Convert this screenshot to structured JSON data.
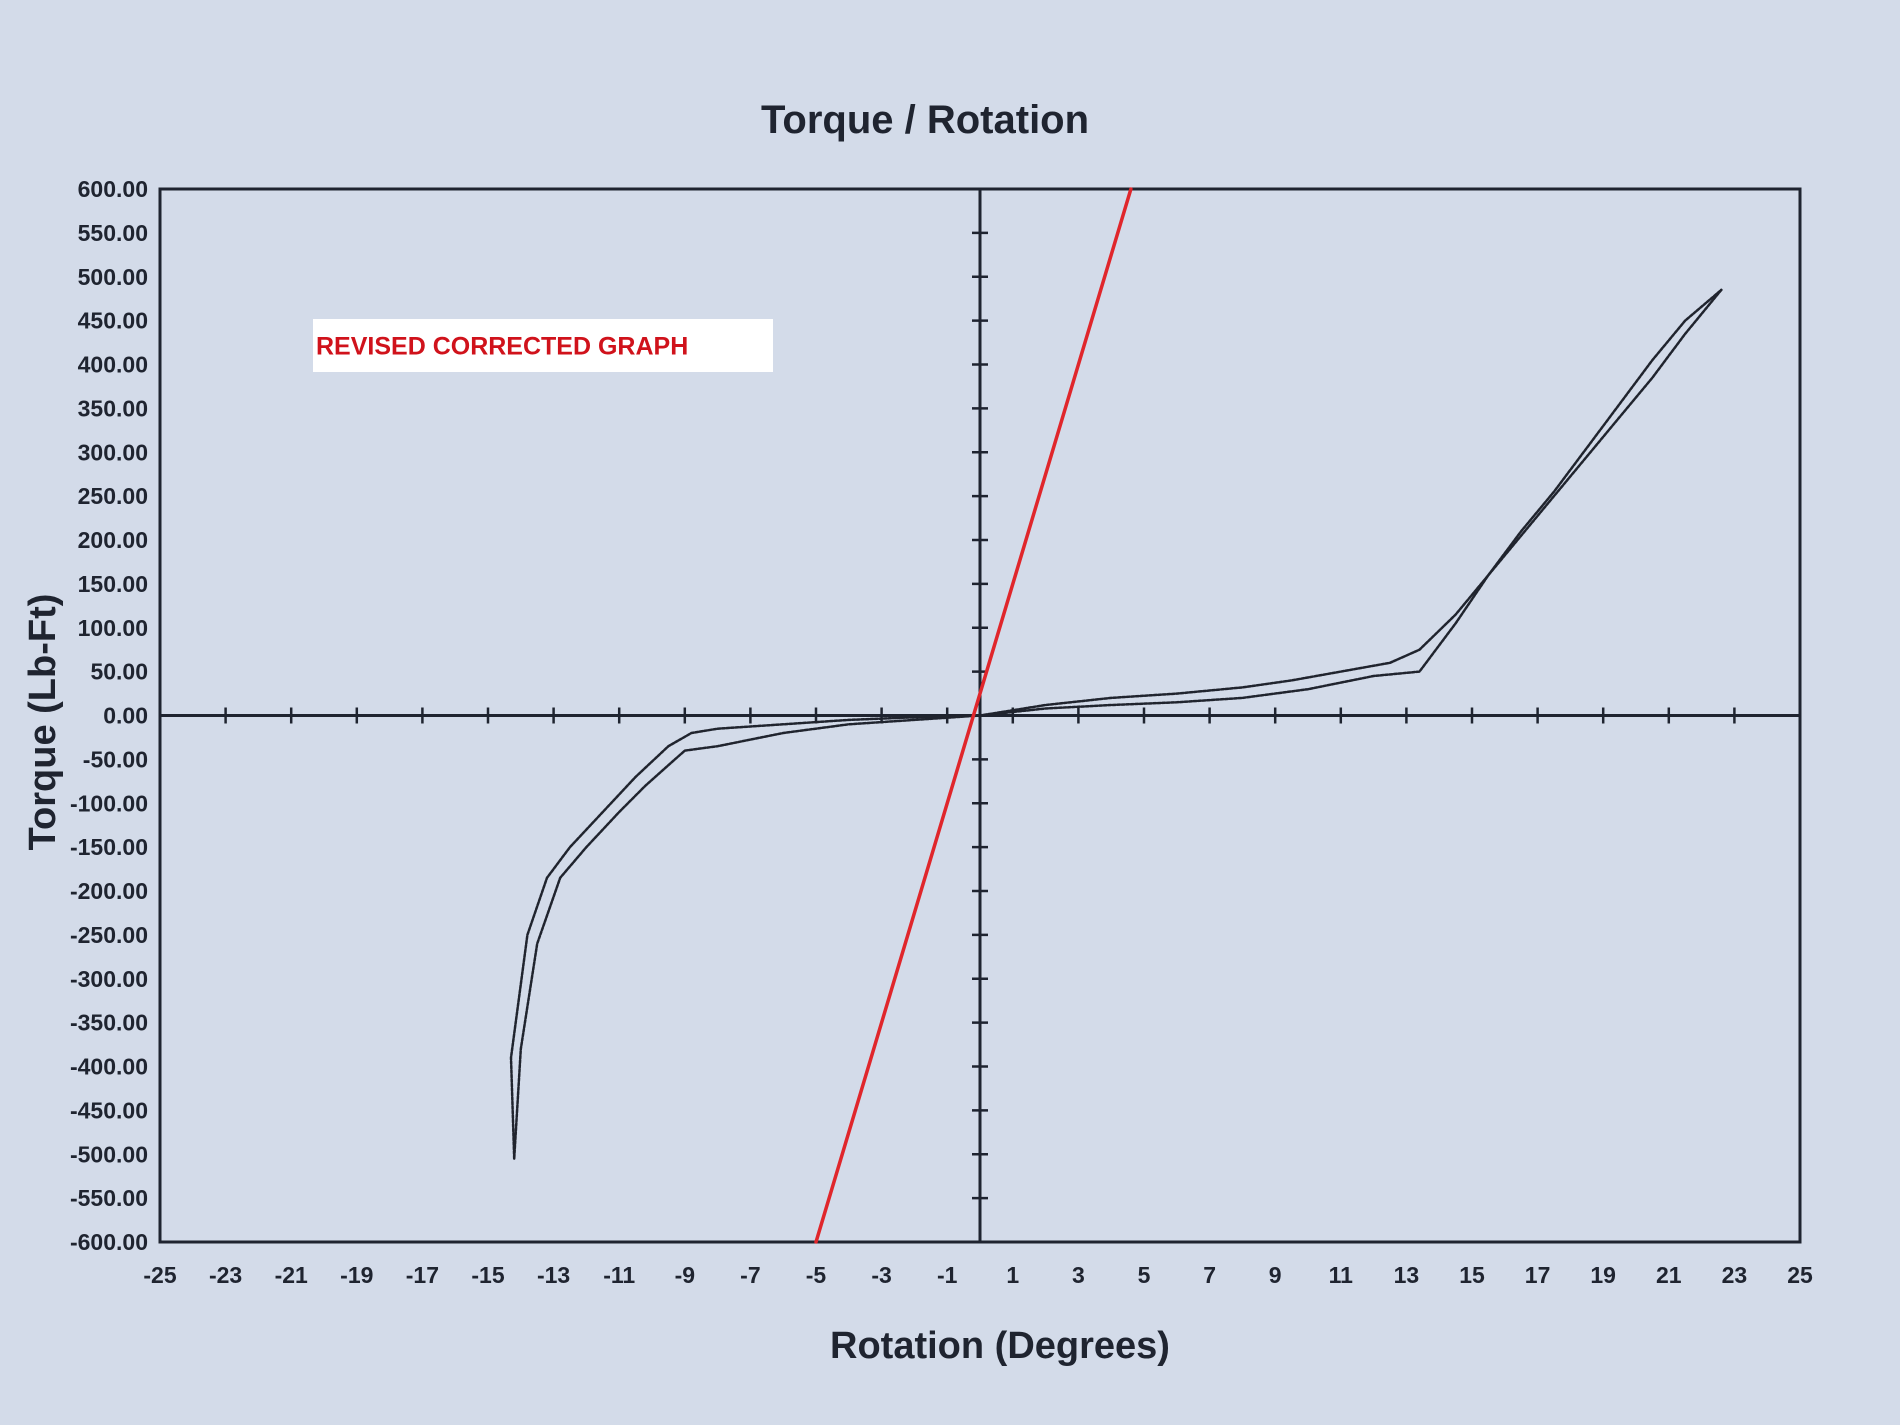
{
  "chart_data": {
    "type": "line",
    "title": "Torque / Rotation",
    "xlabel": "Rotation (Degrees)",
    "ylabel": "Torque (Lb-Ft)",
    "xlim": [
      -25,
      25
    ],
    "ylim": [
      -600,
      600
    ],
    "x_ticks": [
      -25,
      -23,
      -21,
      -19,
      -17,
      -15,
      -13,
      -11,
      -9,
      -7,
      -5,
      -3,
      -1,
      1,
      3,
      5,
      7,
      9,
      11,
      13,
      15,
      17,
      19,
      21,
      23,
      25
    ],
    "x_tick_labels": [
      "-25",
      "-23",
      "-21",
      "-19",
      "-17",
      "-15",
      "-13",
      "-11",
      "-9",
      "-7",
      "-5",
      "-3",
      "-1",
      "1",
      "3",
      "5",
      "7",
      "9",
      "11",
      "13",
      "15",
      "17",
      "19",
      "21",
      "23",
      "25"
    ],
    "y_ticks": [
      600,
      550,
      500,
      450,
      400,
      350,
      300,
      250,
      200,
      150,
      100,
      50,
      0,
      -50,
      -100,
      -150,
      -200,
      -250,
      -300,
      -350,
      -400,
      -450,
      -500,
      -550,
      -600
    ],
    "y_tick_labels": [
      "600.00",
      "550.00",
      "500.00",
      "450.00",
      "400.00",
      "350.00",
      "300.00",
      "250.00",
      "200.00",
      "150.00",
      "100.00",
      "50.00",
      "0.00",
      "-50.00",
      "-100.00",
      "-150.00",
      "-200.00",
      "-250.00",
      "-300.00",
      "-350.00",
      "-400.00",
      "-450.00",
      "-500.00",
      "-550.00",
      "-600.00"
    ],
    "grid": false,
    "series": [
      {
        "color": "#20242e",
        "x": [
          -14.2,
          -14.3,
          -13.8,
          -13.2,
          -12.5,
          -11.5,
          -10.5,
          -9.5,
          -8.8,
          -8,
          -6,
          -4,
          -2,
          0,
          2,
          4,
          6,
          8,
          10,
          12,
          13.4,
          14.5,
          15.5,
          16.5,
          17.5,
          18.5,
          19.5,
          20.5,
          21.5,
          22.6
        ],
        "y": [
          -505,
          -390,
          -250,
          -185,
          -150,
          -110,
          -70,
          -35,
          -20,
          -15,
          -10,
          -5,
          -2,
          0,
          8,
          12,
          15,
          20,
          30,
          45,
          50,
          105,
          160,
          210,
          255,
          305,
          355,
          405,
          450,
          485
        ]
      },
      {
        "color": "#20242e",
        "x": [
          22.6,
          21.5,
          20.5,
          19.5,
          18.5,
          17.5,
          16.5,
          15.5,
          14.5,
          13.4,
          12.5,
          11,
          9.5,
          8,
          6,
          4,
          2,
          0,
          -2,
          -4,
          -6,
          -8,
          -9,
          -10.2,
          -11,
          -12,
          -12.8,
          -13.5,
          -14.0,
          -14.2
        ],
        "y": [
          485,
          435,
          385,
          340,
          295,
          250,
          205,
          160,
          115,
          75,
          60,
          50,
          40,
          32,
          25,
          20,
          12,
          0,
          -5,
          -10,
          -20,
          -35,
          -40,
          -80,
          -110,
          -150,
          -185,
          -260,
          -380,
          -505
        ]
      },
      {
        "color": "#e0262b",
        "x": [
          -5,
          4.6
        ],
        "y": [
          -600,
          600
        ]
      }
    ],
    "annotations": [
      {
        "text": "REVISED CORRECTED GRAPH",
        "background": "#ffffff",
        "color": "#d0121b"
      }
    ]
  }
}
